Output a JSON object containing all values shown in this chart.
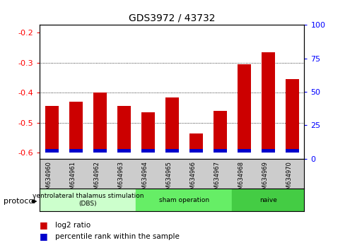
{
  "title": "GDS3972 / 43732",
  "samples": [
    "GSM634960",
    "GSM634961",
    "GSM634962",
    "GSM634963",
    "GSM634964",
    "GSM634965",
    "GSM634966",
    "GSM634967",
    "GSM634968",
    "GSM634969",
    "GSM634970"
  ],
  "log2_ratio": [
    -0.445,
    -0.43,
    -0.4,
    -0.445,
    -0.465,
    -0.415,
    -0.535,
    -0.46,
    -0.305,
    -0.265,
    -0.355
  ],
  "percentile_rank_pct": [
    8,
    8,
    8,
    8,
    8,
    8,
    5,
    5,
    15,
    15,
    10
  ],
  "red_color": "#cc0000",
  "blue_color": "#0000cc",
  "ylim_left": [
    -0.62,
    -0.175
  ],
  "ylim_right": [
    0,
    100
  ],
  "yticks_left": [
    -0.6,
    -0.5,
    -0.4,
    -0.3,
    -0.2
  ],
  "yticks_right": [
    0,
    25,
    50,
    75,
    100
  ],
  "groups": [
    {
      "label": "ventrolateral thalamus stimulation\n(DBS)",
      "start": 0,
      "end": 3,
      "color": "#ccffcc"
    },
    {
      "label": "sham operation",
      "start": 4,
      "end": 7,
      "color": "#66ee66"
    },
    {
      "label": "naive",
      "start": 8,
      "end": 10,
      "color": "#44cc44"
    }
  ],
  "legend_red": "log2 ratio",
  "legend_blue": "percentile rank within the sample",
  "protocol_label": "protocol",
  "bar_width": 0.55,
  "bg_color": "#cccccc",
  "plot_bg": "#ffffff",
  "bar_bottom": -0.6
}
